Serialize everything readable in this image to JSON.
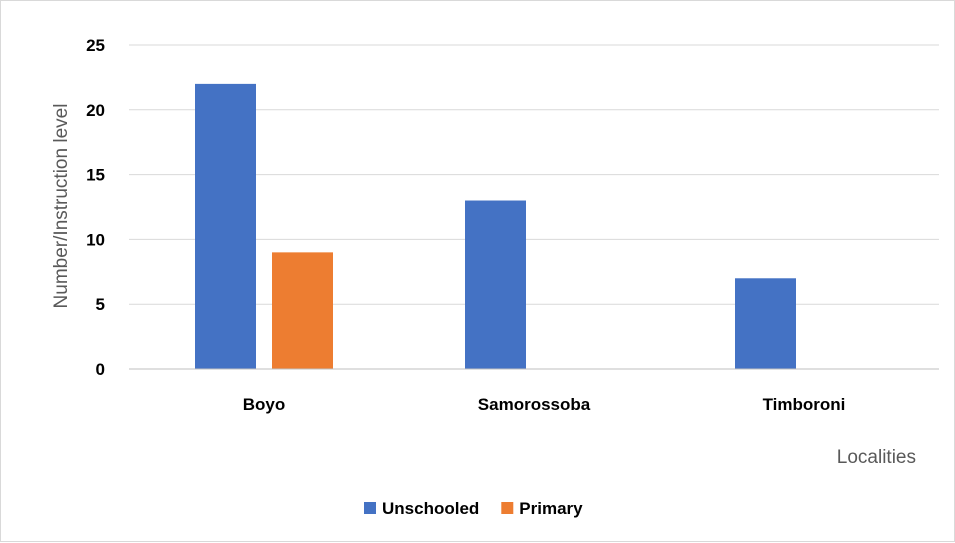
{
  "chart_data": {
    "type": "bar",
    "categories": [
      "Boyo",
      "Samorossoba",
      "Timboroni"
    ],
    "series": [
      {
        "name": "Unschooled",
        "values": [
          22,
          13,
          7
        ],
        "color": "#4472C4"
      },
      {
        "name": "Primary",
        "values": [
          9,
          0,
          0
        ],
        "color": "#ED7D31"
      }
    ],
    "title": "",
    "xlabel": "Localities",
    "ylabel": "Number/Instruction level",
    "ylim": [
      0,
      25
    ],
    "yticks": [
      0,
      5,
      10,
      15,
      20,
      25
    ],
    "grid": true,
    "legend": "bottom",
    "gridline_color": "#d9d9d9"
  }
}
